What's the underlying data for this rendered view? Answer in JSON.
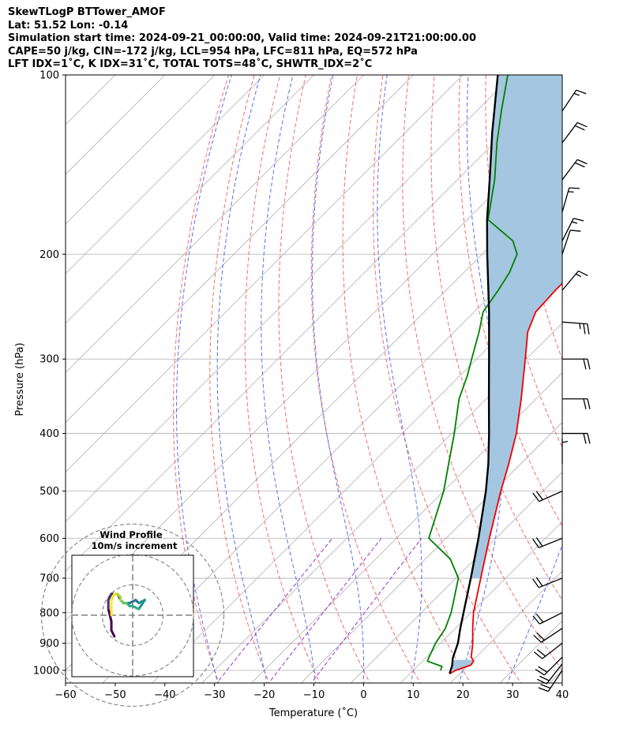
{
  "header": {
    "line1": "SkewTLogP BTTower_AMOF",
    "line2": "Lat: 51.52   Lon: -0.14",
    "line3": "Simulation start time: 2024-09-21_00:00:00, Valid time: 2024-09-21T21:00:00.00",
    "line4": "CAPE=50 j/kg, CIN=-172 j/kg, LCL=954 hPa, LFC=811 hPa, EQ=572 hPa",
    "line5": "LFT IDX=1˚C, K IDX=31˚C, TOTAL TOTS=48˚C, SHWTR_IDX=2˚C"
  },
  "chart_data": {
    "type": "line",
    "xlabel": "Temperature (˚C)",
    "ylabel": "Pressure (hPa)",
    "xlim": [
      -60,
      40
    ],
    "ylim": [
      1050,
      100
    ],
    "y_scale": "log",
    "skew": true,
    "grid": true,
    "x_ticks": [
      -60,
      -50,
      -40,
      -30,
      -20,
      -10,
      0,
      10,
      20,
      30,
      40
    ],
    "x_tick_labels": [
      "−60",
      "−50",
      "−40",
      "−30",
      "−20",
      "−10",
      "0",
      "10",
      "20",
      "30",
      "40"
    ],
    "y_ticks": [
      1000,
      900,
      800,
      700,
      600,
      500,
      400,
      300,
      200,
      100
    ],
    "y_tick_labels": [
      "1000",
      "900",
      "800",
      "700",
      "600",
      "500",
      "400",
      "300",
      "200",
      "100"
    ],
    "colors": {
      "temperature": "#ee0000",
      "dewpoint": "#008000",
      "parcel": "#000000",
      "cape_fill": "#a4c6e0",
      "dry_adiabat": "#f26d6d",
      "moist_adiabat": "#5a6ef0",
      "mixing_ratio": "#9933cc",
      "isotherm": "#b0b0b0"
    },
    "series": [
      {
        "key": "temperature",
        "points": [
          {
            "p": 1013,
            "t": 18.0
          },
          {
            "p": 1000,
            "t": 18.5
          },
          {
            "p": 980,
            "t": 20.5
          },
          {
            "p": 965,
            "t": 20.3
          },
          {
            "p": 950,
            "t": 19.0
          },
          {
            "p": 900,
            "t": 16.5
          },
          {
            "p": 850,
            "t": 13.5
          },
          {
            "p": 800,
            "t": 10.5
          },
          {
            "p": 700,
            "t": 5.0
          },
          {
            "p": 600,
            "t": -1.3
          },
          {
            "p": 500,
            "t": -8.5
          },
          {
            "p": 450,
            "t": -12.4
          },
          {
            "p": 400,
            "t": -17.0
          },
          {
            "p": 350,
            "t": -23.0
          },
          {
            "p": 300,
            "t": -30.2
          },
          {
            "p": 270,
            "t": -35.2
          },
          {
            "p": 250,
            "t": -37.6
          },
          {
            "p": 230,
            "t": -38.0
          },
          {
            "p": 215,
            "t": -38.0
          },
          {
            "p": 200,
            "t": -37.5
          },
          {
            "p": 180,
            "t": -39.5
          },
          {
            "p": 170,
            "t": -39.3
          },
          {
            "p": 160,
            "t": -40.3
          },
          {
            "p": 150,
            "t": -41.3
          },
          {
            "p": 140,
            "t": -43.3
          },
          {
            "p": 130,
            "t": -46.8
          },
          {
            "p": 120,
            "t": -51.2
          },
          {
            "p": 110,
            "t": -55.6
          },
          {
            "p": 100,
            "t": -60.1
          }
        ]
      },
      {
        "key": "dewpoint",
        "points": [
          {
            "p": 1000,
            "t": 15.5
          },
          {
            "p": 985,
            "t": 15.0
          },
          {
            "p": 965,
            "t": 11.0
          },
          {
            "p": 950,
            "t": 10.5
          },
          {
            "p": 900,
            "t": 9.0
          },
          {
            "p": 850,
            "t": 8.0
          },
          {
            "p": 800,
            "t": 6.0
          },
          {
            "p": 700,
            "t": 0.5
          },
          {
            "p": 650,
            "t": -5.0
          },
          {
            "p": 600,
            "t": -13.5
          },
          {
            "p": 550,
            "t": -16.6
          },
          {
            "p": 500,
            "t": -20.0
          },
          {
            "p": 450,
            "t": -24.5
          },
          {
            "p": 400,
            "t": -29.5
          },
          {
            "p": 370,
            "t": -33.0
          },
          {
            "p": 350,
            "t": -35.5
          },
          {
            "p": 320,
            "t": -38.5
          },
          {
            "p": 300,
            "t": -41.0
          },
          {
            "p": 270,
            "t": -45.0
          },
          {
            "p": 250,
            "t": -48.2
          },
          {
            "p": 230,
            "t": -49.5
          },
          {
            "p": 215,
            "t": -50.8
          },
          {
            "p": 200,
            "t": -53.0
          },
          {
            "p": 190,
            "t": -56.5
          },
          {
            "p": 175,
            "t": -65.8
          },
          {
            "p": 150,
            "t": -72.5
          },
          {
            "p": 130,
            "t": -79.5
          },
          {
            "p": 115,
            "t": -85.0
          },
          {
            "p": 100,
            "t": -91.0
          }
        ]
      },
      {
        "key": "parcel",
        "points": [
          {
            "p": 1013,
            "t": 18.0
          },
          {
            "p": 980,
            "t": 16.8
          },
          {
            "p": 954,
            "t": 15.5
          },
          {
            "p": 900,
            "t": 13.5
          },
          {
            "p": 850,
            "t": 11.0
          },
          {
            "p": 800,
            "t": 8.5
          },
          {
            "p": 700,
            "t": 3.0
          },
          {
            "p": 600,
            "t": -3.5
          },
          {
            "p": 500,
            "t": -11.5
          },
          {
            "p": 450,
            "t": -16.5
          },
          {
            "p": 400,
            "t": -22.5
          },
          {
            "p": 350,
            "t": -29.5
          },
          {
            "p": 300,
            "t": -37.5
          },
          {
            "p": 250,
            "t": -47.0
          },
          {
            "p": 200,
            "t": -59.0
          },
          {
            "p": 175,
            "t": -66.0
          },
          {
            "p": 150,
            "t": -73.5
          },
          {
            "p": 125,
            "t": -82.5
          },
          {
            "p": 100,
            "t": -93.0
          }
        ]
      }
    ],
    "wind_barbs": [
      {
        "p": 1000,
        "u": 6,
        "v": 9
      },
      {
        "p": 975,
        "u": 7,
        "v": 9
      },
      {
        "p": 950,
        "u": 8,
        "v": 8
      },
      {
        "p": 900,
        "u": 9,
        "v": 7
      },
      {
        "p": 850,
        "u": 9,
        "v": 6
      },
      {
        "p": 800,
        "u": 10,
        "v": 5
      },
      {
        "p": 700,
        "u": 10,
        "v": 4
      },
      {
        "p": 600,
        "u": 10,
        "v": 4
      },
      {
        "p": 500,
        "u": 9,
        "v": 4
      },
      {
        "p": 450,
        "u": 0,
        "v": -2
      },
      {
        "p": 400,
        "u": -10,
        "v": 0
      },
      {
        "p": 350,
        "u": -11,
        "v": 0
      },
      {
        "p": 300,
        "u": -11,
        "v": 0
      },
      {
        "p": 260,
        "u": -13,
        "v": 1
      },
      {
        "p": 230,
        "u": -5,
        "v": -6
      },
      {
        "p": 200,
        "u": -2,
        "v": -6
      },
      {
        "p": 190,
        "u": -3,
        "v": -6
      },
      {
        "p": 170,
        "u": -2,
        "v": -7
      },
      {
        "p": 150,
        "u": -6,
        "v": -8
      },
      {
        "p": 130,
        "u": -6,
        "v": -8
      },
      {
        "p": 115,
        "u": -4,
        "v": -6
      }
    ],
    "hodograph": {
      "title_line1": "Wind Profile",
      "title_line2": "10m/s increment",
      "rings": [
        10,
        20,
        30
      ],
      "range": 50,
      "points": [
        [
          -6,
          -7
        ],
        [
          -7,
          -5
        ],
        [
          -7,
          -2
        ],
        [
          -8,
          2
        ],
        [
          -8,
          5
        ],
        [
          -7,
          7
        ],
        [
          -5,
          7
        ],
        [
          -4,
          5
        ],
        [
          -3,
          4
        ],
        [
          -1,
          4
        ],
        [
          1,
          5
        ],
        [
          2,
          4
        ],
        [
          4,
          5
        ],
        [
          2,
          2
        ],
        [
          0,
          3
        ],
        [
          -1,
          3
        ],
        [
          -2,
          4
        ],
        [
          -3,
          4
        ],
        [
          -4,
          5
        ],
        [
          -4,
          6
        ],
        [
          -5,
          7
        ],
        [
          -6,
          7
        ],
        [
          -7,
          5
        ],
        [
          -7,
          0
        ]
      ]
    }
  }
}
